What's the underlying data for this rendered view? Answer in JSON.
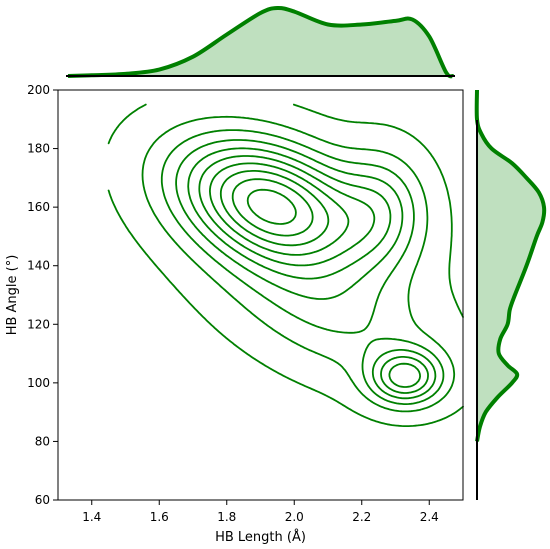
{
  "chart_data": {
    "type": "joint-kde",
    "xlabel": "HB Length (Å)",
    "ylabel": "HB Angle (°)",
    "xlim": [
      1.3,
      2.5
    ],
    "ylim": [
      60,
      200
    ],
    "xticks": [
      {
        "value": 1.4,
        "label": "1.4"
      },
      {
        "value": 1.6,
        "label": "1.6"
      },
      {
        "value": 1.8,
        "label": "1.8"
      },
      {
        "value": 2.0,
        "label": "2.0"
      },
      {
        "value": 2.2,
        "label": "2.2"
      },
      {
        "value": 2.4,
        "label": "2.4"
      }
    ],
    "yticks": [
      {
        "value": 60,
        "label": "60"
      },
      {
        "value": 80,
        "label": "80"
      },
      {
        "value": 100,
        "label": "100"
      },
      {
        "value": 120,
        "label": "120"
      },
      {
        "value": 140,
        "label": "140"
      },
      {
        "value": 160,
        "label": "160"
      },
      {
        "value": 180,
        "label": "180"
      },
      {
        "value": 200,
        "label": "200"
      }
    ],
    "color": "#008000",
    "fill_color": "#bfe0bf",
    "kde_components": [
      {
        "mx": 1.93,
        "my": 161,
        "sx": 0.19,
        "sy": 15,
        "rho": -0.35,
        "w": 1.0
      },
      {
        "mx": 2.33,
        "my": 102,
        "sx": 0.075,
        "sy": 6.5,
        "rho": 0.0,
        "w": 0.55
      },
      {
        "mx": 2.1,
        "my": 125,
        "sx": 0.22,
        "sy": 17,
        "rho": -0.5,
        "w": 0.25
      },
      {
        "mx": 2.26,
        "my": 160,
        "sx": 0.09,
        "sy": 13,
        "rho": 0.0,
        "w": 0.3
      }
    ],
    "contour_levels": 10,
    "marginal_x": {
      "x": [
        1.3,
        1.4,
        1.5,
        1.6,
        1.7,
        1.8,
        1.9,
        1.95,
        2.0,
        2.1,
        2.2,
        2.3,
        2.35,
        2.4,
        2.45,
        2.5
      ],
      "density": [
        0.0,
        0.01,
        0.03,
        0.09,
        0.27,
        0.58,
        0.88,
        0.95,
        0.9,
        0.72,
        0.72,
        0.77,
        0.79,
        0.55,
        0.05,
        0.0
      ]
    },
    "marginal_y": {
      "y": [
        80,
        85,
        90,
        95,
        100,
        103,
        106,
        110,
        115,
        120,
        125,
        130,
        140,
        150,
        155,
        160,
        165,
        170,
        175,
        180,
        185,
        190,
        200
      ],
      "density": [
        0.0,
        0.04,
        0.12,
        0.28,
        0.48,
        0.55,
        0.42,
        0.3,
        0.32,
        0.42,
        0.45,
        0.52,
        0.68,
        0.82,
        0.9,
        0.92,
        0.85,
        0.68,
        0.48,
        0.2,
        0.06,
        0.0,
        0.0
      ]
    }
  }
}
